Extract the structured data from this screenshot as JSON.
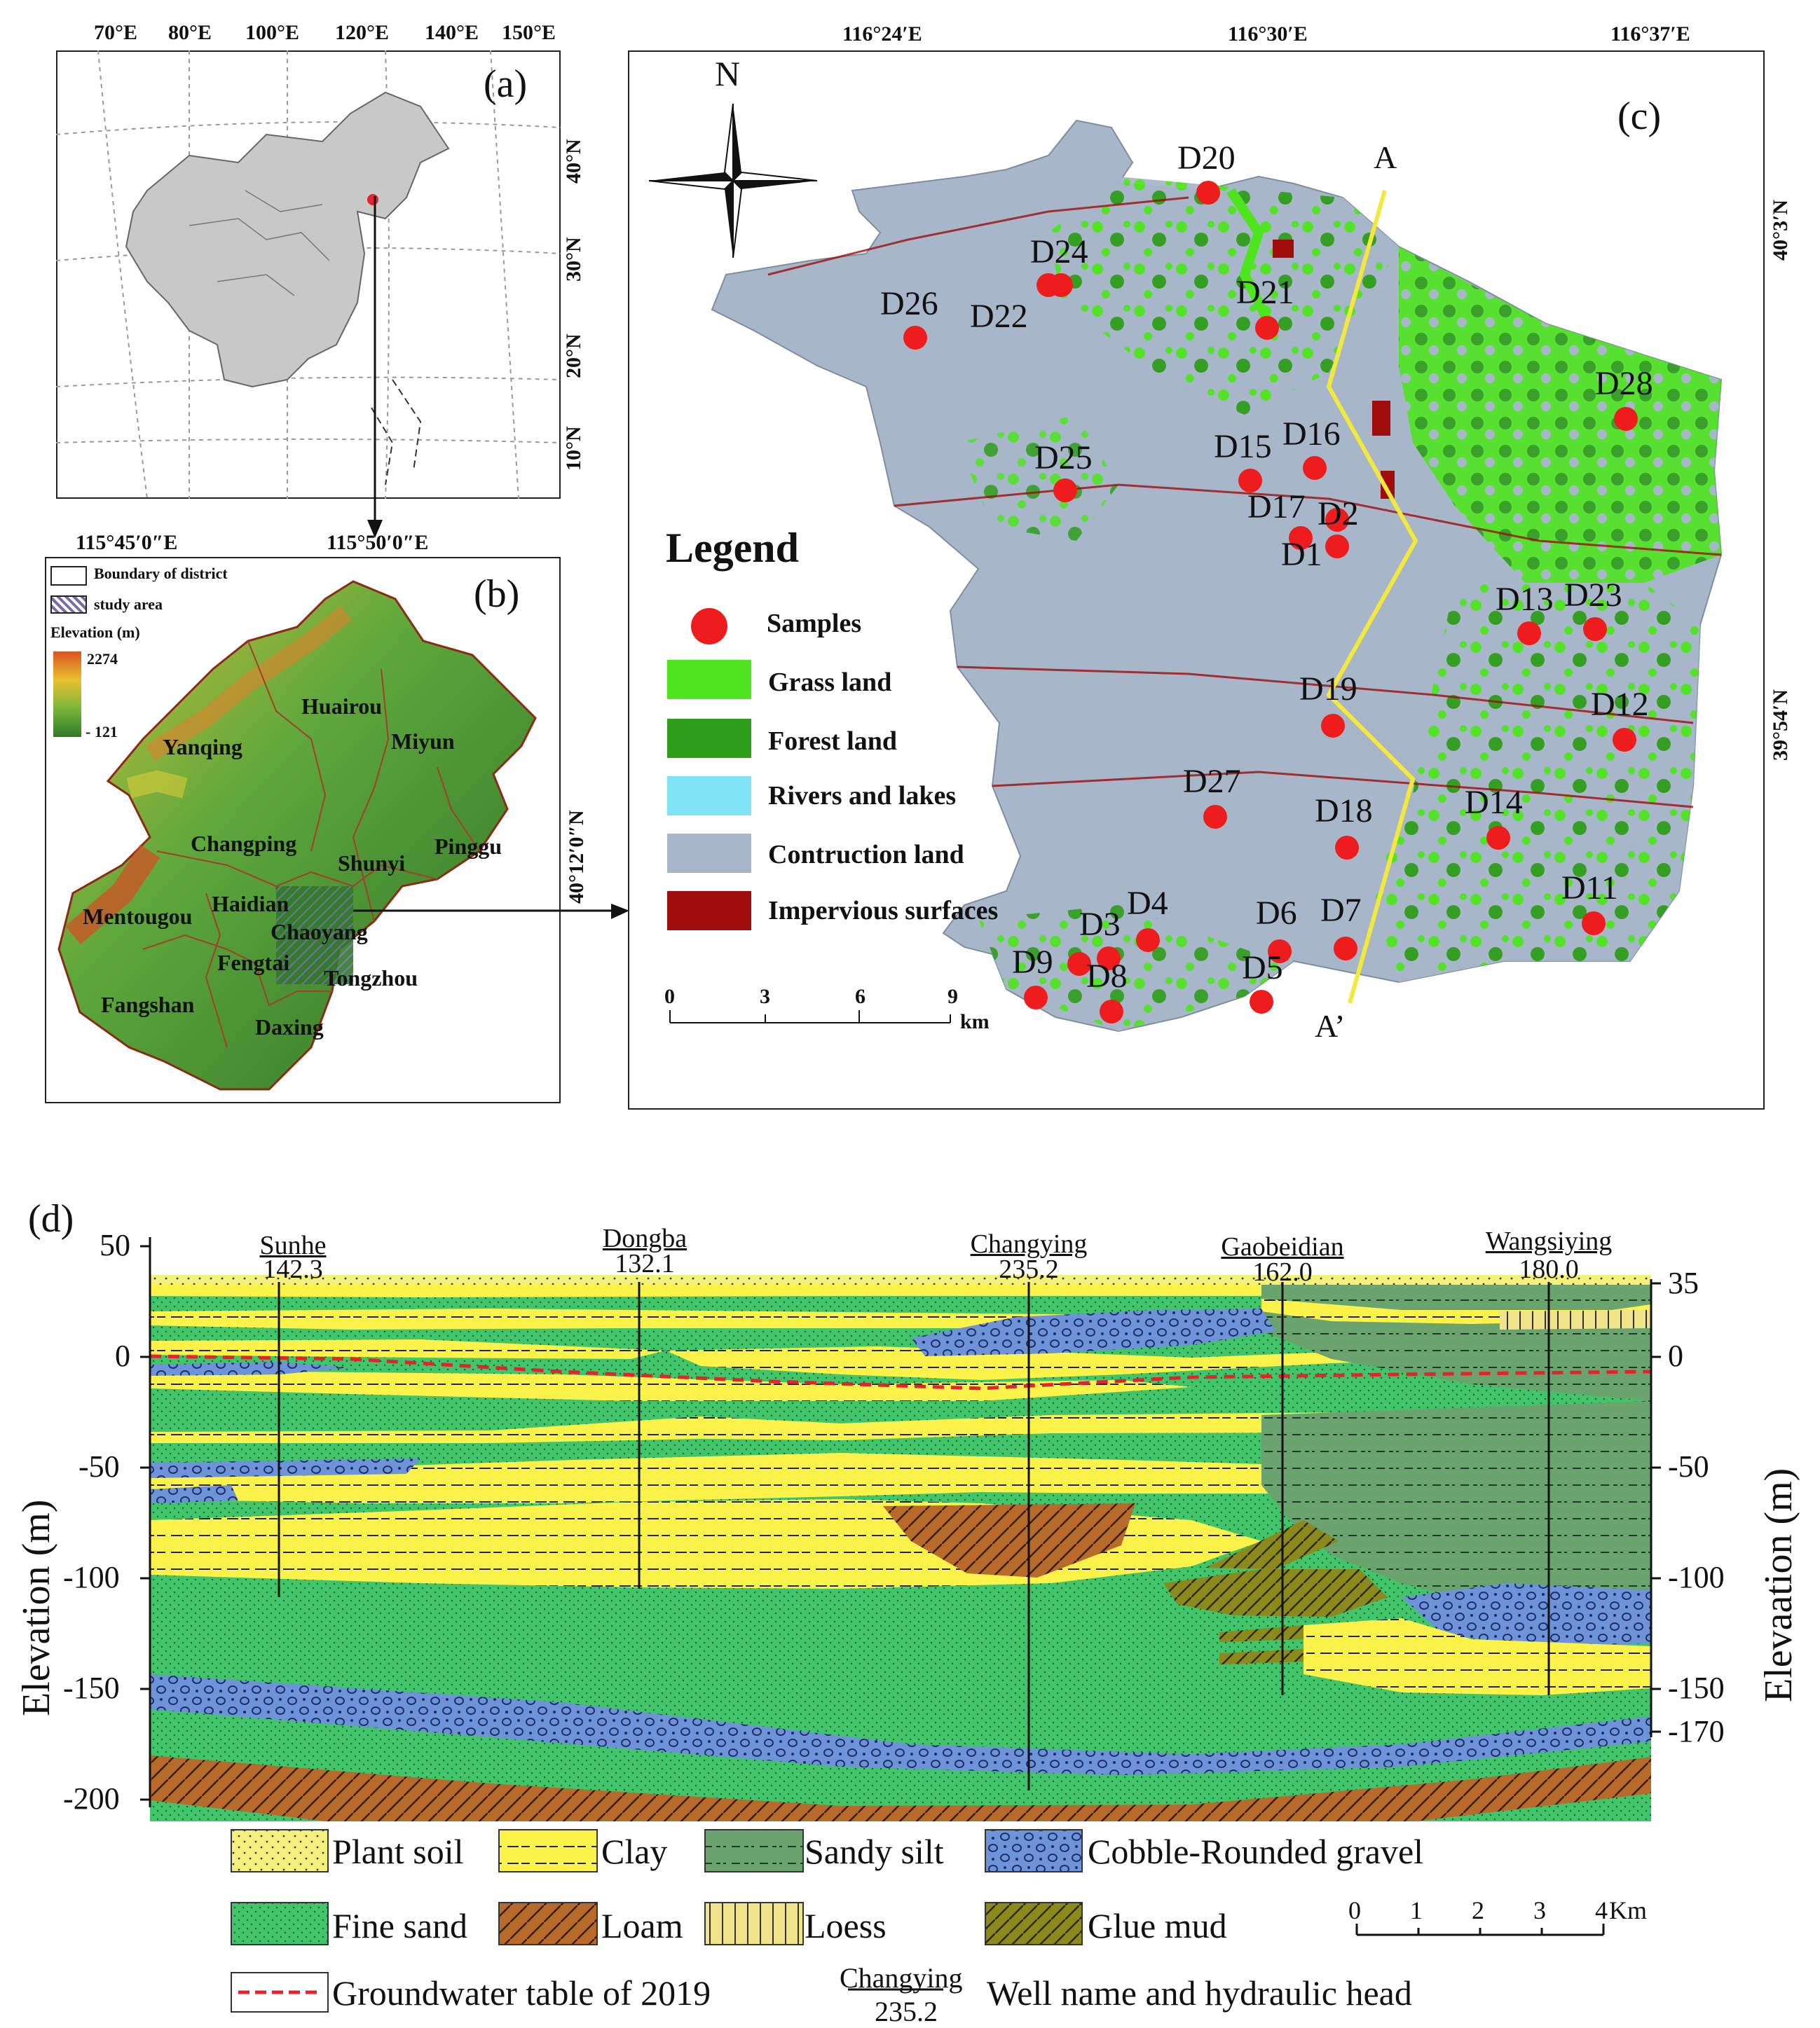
{
  "panel_a": {
    "label": "(a)",
    "top_longitudes": [
      "70°E",
      "80°E",
      "100°E",
      "120°E",
      "140°E",
      "150°E"
    ],
    "right_latitudes": [
      "40°N",
      "30°N",
      "20°N",
      "10°N"
    ]
  },
  "panel_b": {
    "label": "(b)",
    "top_coords": [
      "115°45′0″E",
      "115°50′0″E"
    ],
    "right_coord": "40°12′0″N",
    "legend": {
      "boundary": "Boundary of district",
      "study_area": "study area",
      "elevation_title": "Elevation (m)",
      "elev_max": "2274",
      "elev_min": "- 121"
    },
    "districts": [
      "Huairou",
      "Yanqing",
      "Miyun",
      "Changping",
      "Shunyi",
      "Pinggu",
      "Mentougou",
      "Haidian",
      "Chaoyang",
      "Fengtai",
      "Tongzhou",
      "Fangshan",
      "Daxing"
    ]
  },
  "panel_c": {
    "label": "(c)",
    "top_coords": [
      "116°24′E",
      "116°30′E",
      "116°37′E"
    ],
    "right_coords": [
      "40°3′N",
      "39°54′N"
    ],
    "north_label": "N",
    "section_start": "A",
    "section_end": "A’",
    "legend": {
      "title": "Legend",
      "items": [
        {
          "label": "Samples",
          "color": "#ee1c1c"
        },
        {
          "label": "Grass land",
          "color": "#4ee51e"
        },
        {
          "label": "Forest land",
          "color": "#2e9e1a"
        },
        {
          "label": "Rivers and lakes",
          "color": "#7fe3f5"
        },
        {
          "label": "Contruction land",
          "color": "#a7b7c9"
        },
        {
          "label": "Impervious surfaces",
          "color": "#9e0c0c"
        }
      ]
    },
    "scale": {
      "ticks": [
        "0",
        "3",
        "6",
        "9"
      ],
      "unit": "km"
    },
    "samples": [
      "D20",
      "D24",
      "D21",
      "D26",
      "D22",
      "D28",
      "D15",
      "D16",
      "D25",
      "D17",
      "D2",
      "D1",
      "D13",
      "D23",
      "D19",
      "D12",
      "D27",
      "D18",
      "D14",
      "D11",
      "D4",
      "D3",
      "D6",
      "D7",
      "D9",
      "D8",
      "D5"
    ]
  },
  "panel_d": {
    "label": "(d)",
    "left_ticks": [
      "50",
      "0",
      "-50",
      "-100",
      "-150",
      "-200"
    ],
    "right_ticks": [
      "35",
      "0",
      "-50",
      "-100",
      "-150",
      "-170"
    ],
    "left_axis_title": "Elevation (m)",
    "right_axis_title": "Elevaation (m)",
    "wells": [
      {
        "name": "Sunhe",
        "head": "142.3"
      },
      {
        "name": "Dongba",
        "head": "132.1"
      },
      {
        "name": "Changying",
        "head": "235.2"
      },
      {
        "name": "Gaobeidian",
        "head": "162.0"
      },
      {
        "name": "Wangsiying",
        "head": "180.0"
      }
    ],
    "legend": {
      "plant_soil": "Plant soil",
      "clay": "Clay",
      "sandy_silt": "Sandy silt",
      "cobble": "Cobble-Rounded gravel",
      "fine_sand": "Fine sand",
      "loam": "Loam",
      "loess": "Loess",
      "glue_mud": "Glue mud",
      "groundwater": "Groundwater table of 2019",
      "well_example_name": "Changying",
      "well_example_head": "235.2",
      "well_desc": "Well name and hydraulic head"
    },
    "scale": {
      "ticks": [
        "0",
        "1",
        "2",
        "3",
        "4"
      ],
      "unit": "Km"
    },
    "colors": {
      "plant_soil": "#f5f07a",
      "clay": "#fbf34a",
      "sandy_silt": "#6aa36e",
      "cobble": "#6f93d8",
      "fine_sand": "#41c56a",
      "loam": "#b86a2a",
      "loess": "#f0e48a",
      "glue_mud": "#8c8a1c",
      "groundwater": "#e3242b"
    }
  }
}
